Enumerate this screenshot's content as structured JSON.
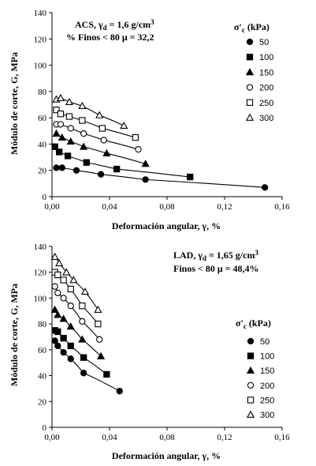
{
  "chart_data": [
    {
      "type": "scatter",
      "xlabel": "Deformación angular, γ, %",
      "ylabel": "Módulo de corte, G, MPa",
      "xlim": [
        0,
        0.16
      ],
      "ylim": [
        0,
        140
      ],
      "x_ticks": [
        "0,00",
        "0,04",
        "0,08",
        "0,12",
        "0,16"
      ],
      "y_ticks": [
        "0",
        "20",
        "40",
        "60",
        "80",
        "100",
        "120",
        "140"
      ],
      "annotation_lines": [
        "ACS, γd = 1,6 g/cm3",
        "% Finos < 80 μ = 32,2"
      ],
      "legend_title": "σ'c (kPa)",
      "legend_placement": "top-right",
      "grid": false,
      "series": [
        {
          "name": "50",
          "marker": "filled-circle",
          "x": [
            0.003,
            0.007,
            0.017,
            0.034,
            0.065,
            0.148
          ],
          "y": [
            22,
            22,
            20,
            17,
            13,
            7
          ]
        },
        {
          "name": "100",
          "marker": "filled-square",
          "x": [
            0.002,
            0.005,
            0.011,
            0.024,
            0.045,
            0.096
          ],
          "y": [
            38,
            34,
            31,
            26,
            21,
            15
          ]
        },
        {
          "name": "150",
          "marker": "filled-triangle",
          "x": [
            0.003,
            0.007,
            0.013,
            0.022,
            0.038,
            0.065
          ],
          "y": [
            48,
            45,
            42,
            38,
            33,
            25
          ]
        },
        {
          "name": "200",
          "marker": "open-circle",
          "x": [
            0.003,
            0.006,
            0.013,
            0.022,
            0.036,
            0.06
          ],
          "y": [
            55,
            55,
            52,
            48,
            43,
            36
          ]
        },
        {
          "name": "250",
          "marker": "open-square",
          "x": [
            0.003,
            0.006,
            0.012,
            0.021,
            0.035,
            0.058
          ],
          "y": [
            66,
            63,
            61,
            58,
            52,
            45
          ]
        },
        {
          "name": "300",
          "marker": "open-triangle",
          "x": [
            0.003,
            0.006,
            0.012,
            0.021,
            0.033,
            0.05
          ],
          "y": [
            74,
            75,
            72,
            69,
            62,
            54
          ]
        }
      ]
    },
    {
      "type": "scatter",
      "xlabel": "Deformación angular, γ, %",
      "ylabel": "Módulo de corte, G, MPa",
      "xlim": [
        0,
        0.16
      ],
      "ylim": [
        0,
        140
      ],
      "x_ticks": [
        "0,00",
        "0,04",
        "0,08",
        "0,12",
        "0,16"
      ],
      "y_ticks": [
        "0",
        "20",
        "40",
        "60",
        "80",
        "100",
        "120",
        "140"
      ],
      "annotation_lines": [
        "LAD, γd = 1,65 g/cm3",
        "Finos < 80 μ = 48,4%"
      ],
      "legend_title": "σ'c (kPa)",
      "legend_placement": "right",
      "grid": false,
      "series": [
        {
          "name": "50",
          "marker": "filled-circle",
          "x": [
            0.002,
            0.004,
            0.008,
            0.013,
            0.022,
            0.047
          ],
          "y": [
            67,
            63,
            58,
            53,
            42,
            28
          ]
        },
        {
          "name": "100",
          "marker": "filled-square",
          "x": [
            0.002,
            0.004,
            0.008,
            0.013,
            0.022,
            0.038
          ],
          "y": [
            75,
            74,
            69,
            63,
            54,
            41
          ]
        },
        {
          "name": "150",
          "marker": "filled-triangle",
          "x": [
            0.002,
            0.004,
            0.008,
            0.013,
            0.021,
            0.034
          ],
          "y": [
            91,
            87,
            84,
            78,
            68,
            55
          ]
        },
        {
          "name": "200",
          "marker": "open-circle",
          "x": [
            0.002,
            0.004,
            0.008,
            0.013,
            0.021,
            0.033
          ],
          "y": [
            109,
            104,
            100,
            94,
            82,
            68
          ]
        },
        {
          "name": "250",
          "marker": "open-square",
          "x": [
            0.002,
            0.004,
            0.008,
            0.013,
            0.021,
            0.032
          ],
          "y": [
            120,
            118,
            114,
            107,
            94,
            80
          ]
        },
        {
          "name": "300",
          "marker": "open-triangle",
          "x": [
            0.002,
            0.005,
            0.01,
            0.015,
            0.023,
            0.032
          ],
          "y": [
            132,
            127,
            120,
            114,
            105,
            91
          ]
        }
      ]
    }
  ]
}
